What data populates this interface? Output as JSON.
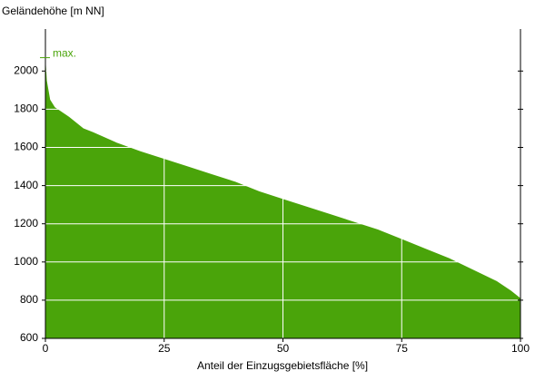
{
  "chart_data": {
    "type": "area",
    "y_label": "Geländehöhe [m NN]",
    "x_label": "Anteil der Einzugsgebietsfläche [%]",
    "x": [
      0,
      0.3,
      1,
      2,
      5,
      8,
      10,
      15,
      20,
      25,
      30,
      35,
      40,
      45,
      50,
      55,
      60,
      65,
      70,
      75,
      80,
      85,
      90,
      95,
      98,
      100
    ],
    "values": [
      2070,
      1950,
      1850,
      1810,
      1760,
      1700,
      1680,
      1625,
      1580,
      1540,
      1500,
      1460,
      1420,
      1370,
      1330,
      1290,
      1250,
      1210,
      1170,
      1120,
      1070,
      1020,
      960,
      900,
      850,
      810
    ],
    "color": "#4aa40a",
    "xlim": [
      0,
      100
    ],
    "xticks": [
      0,
      25,
      50,
      75,
      100
    ],
    "ylim": [
      600,
      2220
    ],
    "yticks": [
      600,
      800,
      1000,
      1200,
      1400,
      1600,
      1800,
      2000
    ],
    "grid": true,
    "max": {
      "label": "max.",
      "value": 2070
    }
  }
}
